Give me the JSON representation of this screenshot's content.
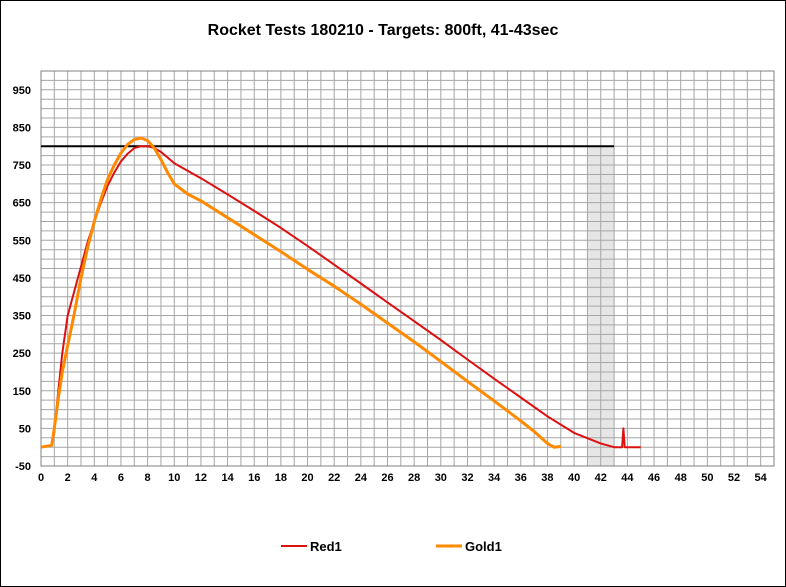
{
  "chart_data": {
    "type": "line",
    "title": "Rocket Tests 180210 - Targets: 800ft, 41-43sec",
    "xlabel": "",
    "ylabel": "",
    "xlim": [
      0,
      55
    ],
    "ylim": [
      -50,
      1000
    ],
    "x_ticks": [
      "0",
      "2",
      "4",
      "6",
      "8",
      "10",
      "12",
      "14",
      "16",
      "18",
      "20",
      "22",
      "24",
      "26",
      "28",
      "30",
      "32",
      "34",
      "36",
      "38",
      "40",
      "42",
      "44",
      "46",
      "48",
      "50",
      "52",
      "54"
    ],
    "y_ticks": [
      "-50",
      "50",
      "150",
      "250",
      "350",
      "450",
      "550",
      "650",
      "750",
      "850",
      "950"
    ],
    "target_altitude": 800,
    "target_time_window": [
      41,
      43
    ],
    "grid": true,
    "legend_position": "bottom",
    "series": [
      {
        "name": "Red1",
        "color": "#dd1010",
        "x": [
          0,
          0.8,
          1.0,
          1.3,
          1.6,
          2.0,
          2.5,
          3.0,
          3.5,
          4.0,
          4.5,
          5.0,
          5.5,
          6.0,
          6.5,
          7.0,
          7.5,
          8.0,
          8.5,
          9.0,
          9.5,
          10.0,
          12,
          14,
          16,
          18,
          20,
          22,
          24,
          26,
          28,
          30,
          32,
          34,
          36,
          38,
          40,
          42,
          43,
          43.6,
          43.7,
          43.8,
          43.9,
          44.5,
          45
        ],
        "y": [
          0,
          5,
          40,
          150,
          250,
          350,
          415,
          480,
          545,
          600,
          650,
          695,
          730,
          760,
          780,
          795,
          800,
          800,
          795,
          785,
          770,
          755,
          715,
          672,
          628,
          583,
          535,
          485,
          435,
          385,
          335,
          285,
          233,
          182,
          132,
          82,
          38,
          10,
          0,
          0,
          50,
          0,
          0,
          0,
          0
        ]
      },
      {
        "name": "Gold1",
        "color": "#ff8a00",
        "x": [
          0,
          0.8,
          1.0,
          1.3,
          1.6,
          2.0,
          2.5,
          3.0,
          3.5,
          4.0,
          4.5,
          5.0,
          5.5,
          6.0,
          6.5,
          7.0,
          7.5,
          8.0,
          8.5,
          9.0,
          9.5,
          10.0,
          11,
          12,
          14,
          16,
          18,
          20,
          22,
          24,
          26,
          28,
          30,
          32,
          34,
          36,
          37,
          38,
          38.5,
          39
        ],
        "y": [
          0,
          5,
          50,
          130,
          200,
          270,
          355,
          450,
          530,
          600,
          660,
          712,
          750,
          782,
          805,
          818,
          822,
          815,
          795,
          765,
          730,
          700,
          673,
          655,
          610,
          565,
          520,
          473,
          428,
          380,
          330,
          280,
          228,
          175,
          123,
          70,
          42,
          10,
          0,
          2
        ]
      }
    ]
  }
}
